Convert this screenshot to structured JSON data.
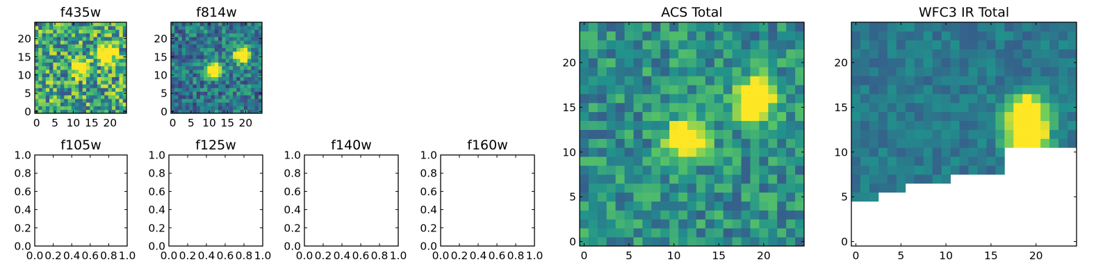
{
  "chart_data": [
    {
      "type": "heatmap",
      "title": "f435w",
      "xticks": [
        "0",
        "5",
        "10",
        "15",
        "20"
      ],
      "yticks": [
        "0",
        "5",
        "10",
        "15",
        "20"
      ],
      "xlim": [
        -0.5,
        24.5
      ],
      "ylim": [
        -0.5,
        24.5
      ],
      "colormap": "viridis",
      "vmin": 0,
      "vmax": 1,
      "peaks": [
        [
          19,
          16,
          1.0
        ],
        [
          12,
          12,
          0.75
        ]
      ],
      "noise": 0.35,
      "base": 0.6
    },
    {
      "type": "heatmap",
      "title": "f814w",
      "xticks": [
        "0",
        "5",
        "10",
        "15",
        "20"
      ],
      "yticks": [
        "0",
        "5",
        "10",
        "15",
        "20"
      ],
      "xlim": [
        -0.5,
        24.5
      ],
      "ylim": [
        -0.5,
        24.5
      ],
      "colormap": "viridis",
      "vmin": 0,
      "vmax": 1,
      "peaks": [
        [
          19,
          15.5,
          1.0
        ],
        [
          11.5,
          11.5,
          0.9
        ]
      ],
      "noise": 0.22,
      "base": 0.4
    },
    {
      "type": "empty",
      "title": "f105w",
      "xticks": [
        "0.0",
        "0.2",
        "0.4",
        "0.6",
        "0.8",
        "1.0"
      ],
      "yticks": [
        "0.0",
        "0.2",
        "0.4",
        "0.6",
        "0.8",
        "1.0"
      ],
      "xlim": [
        0,
        1
      ],
      "ylim": [
        0,
        1
      ]
    },
    {
      "type": "empty",
      "title": "f125w",
      "xticks": [
        "0.0",
        "0.2",
        "0.4",
        "0.6",
        "0.8",
        "1.0"
      ],
      "yticks": [
        "0.0",
        "0.2",
        "0.4",
        "0.6",
        "0.8",
        "1.0"
      ],
      "xlim": [
        0,
        1
      ],
      "ylim": [
        0,
        1
      ]
    },
    {
      "type": "empty",
      "title": "f140w",
      "xticks": [
        "0.0",
        "0.2",
        "0.4",
        "0.6",
        "0.8",
        "1.0"
      ],
      "yticks": [
        "0.0",
        "0.2",
        "0.4",
        "0.6",
        "0.8",
        "1.0"
      ],
      "xlim": [
        0,
        1
      ],
      "ylim": [
        0,
        1
      ]
    },
    {
      "type": "empty",
      "title": "f160w",
      "xticks": [
        "0.0",
        "0.2",
        "0.4",
        "0.6",
        "0.8",
        "1.0"
      ],
      "yticks": [
        "0.0",
        "0.2",
        "0.4",
        "0.6",
        "0.8",
        "1.0"
      ],
      "xlim": [
        0,
        1
      ],
      "ylim": [
        0,
        1
      ]
    },
    {
      "type": "heatmap",
      "title": "ACS Total",
      "xticks": [
        "0",
        "5",
        "10",
        "15",
        "20"
      ],
      "yticks": [
        "0",
        "5",
        "10",
        "15",
        "20"
      ],
      "xlim": [
        -0.5,
        24.5
      ],
      "ylim": [
        -0.5,
        24.5
      ],
      "colormap": "viridis",
      "vmin": 0,
      "vmax": 1,
      "peaks": [
        [
          19,
          16,
          1.0
        ],
        [
          11.5,
          11.5,
          0.9
        ]
      ],
      "noise": 0.2,
      "base": 0.5
    },
    {
      "type": "heatmap",
      "title": "WFC3 IR Total",
      "xticks": [
        "0",
        "5",
        "10",
        "15",
        "20"
      ],
      "yticks": [
        "0",
        "5",
        "10",
        "15",
        "20"
      ],
      "xlim": [
        -0.5,
        24.5
      ],
      "ylim": [
        -0.5,
        24.5
      ],
      "colormap": "viridis",
      "vmin": 0,
      "vmax": 1,
      "peaks": [
        [
          19,
          14.5,
          0.95
        ],
        [
          19,
          11.5,
          1.0
        ]
      ],
      "noise": 0.1,
      "base": 0.4,
      "masked_edge": [
        [
          0,
          4.5
        ],
        [
          2,
          4.5
        ],
        [
          3,
          5.5
        ],
        [
          5,
          5.5
        ],
        [
          6,
          6.5
        ],
        [
          10,
          6.5
        ],
        [
          11,
          7.5
        ],
        [
          16,
          7.5
        ],
        [
          17,
          10.5
        ],
        [
          24,
          10.5
        ]
      ]
    }
  ]
}
